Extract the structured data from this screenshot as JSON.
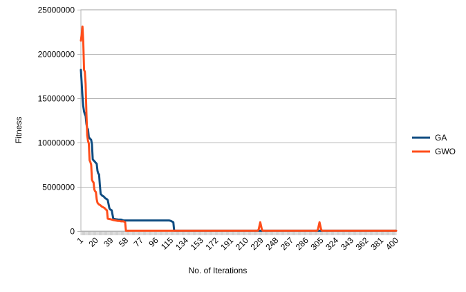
{
  "chart_data": {
    "type": "line",
    "title": "",
    "xlabel": "No. of Iterations",
    "ylabel": "Fitness",
    "xlim": [
      1,
      400
    ],
    "ylim": [
      0,
      25000000
    ],
    "y_ticks": [
      0,
      5000000,
      10000000,
      15000000,
      20000000,
      25000000
    ],
    "y_tick_labels": [
      "0",
      "5000000",
      "10000000",
      "15000000",
      "20000000",
      "25000000"
    ],
    "x_ticks": [
      1,
      20,
      39,
      58,
      77,
      96,
      115,
      134,
      153,
      172,
      191,
      210,
      229,
      248,
      267,
      286,
      305,
      324,
      343,
      362,
      381,
      400
    ],
    "x_tick_labels": [
      "1",
      "20",
      "39",
      "58",
      "77",
      "96",
      "115",
      "134",
      "153",
      "172",
      "191",
      "210",
      "229",
      "248",
      "267",
      "286",
      "305",
      "324",
      "343",
      "362",
      "381",
      "400"
    ],
    "grid": "horizontal",
    "legend_position": "right",
    "series": [
      {
        "name": "GA",
        "color": "#0f4c81",
        "x": [
          1,
          3,
          4,
          5,
          6,
          7,
          8,
          9,
          10,
          11,
          12,
          13,
          14,
          15,
          16,
          17,
          18,
          19,
          20,
          21,
          22,
          23,
          24,
          25,
          26,
          27,
          28,
          30,
          31,
          32,
          34,
          35,
          37,
          38,
          39,
          40,
          42,
          43,
          44,
          45,
          46,
          47,
          48,
          50,
          52,
          55,
          58,
          60,
          65,
          70,
          80,
          90,
          100,
          105,
          108,
          110,
          113,
          115,
          116,
          117,
          118,
          119,
          120,
          121,
          122,
          125,
          134,
          153,
          172,
          191,
          210,
          229,
          248,
          267,
          286,
          305,
          324,
          343,
          362,
          381,
          400
        ],
        "values": [
          18200000,
          15200000,
          14100000,
          13500000,
          13200000,
          13000000,
          12100000,
          11600000,
          11500000,
          10600000,
          10500000,
          10400000,
          10300000,
          9800000,
          8100000,
          8000000,
          7900000,
          7800000,
          7700000,
          7600000,
          6800000,
          6500000,
          6400000,
          5200000,
          4200000,
          4100000,
          4000000,
          3900000,
          3800000,
          3700000,
          3600000,
          3500000,
          2600000,
          2450000,
          2400000,
          2350000,
          1400000,
          1380000,
          1360000,
          1340000,
          1330000,
          1320000,
          1310000,
          1300000,
          1300000,
          1200000,
          1200000,
          1200000,
          1200000,
          1200000,
          1200000,
          1200000,
          1200000,
          1200000,
          1200000,
          1200000,
          1200000,
          1150000,
          1100000,
          1050000,
          1000000,
          50000,
          50000,
          50000,
          50000,
          50000,
          50000,
          50000,
          50000,
          50000,
          50000,
          50000,
          50000,
          50000,
          50000,
          50000,
          50000,
          50000,
          50000,
          50000,
          50000
        ]
      },
      {
        "name": "GWO",
        "color": "#ff4d1a",
        "x": [
          1,
          2,
          3,
          4,
          5,
          6,
          7,
          8,
          9,
          10,
          11,
          12,
          13,
          14,
          15,
          16,
          17,
          18,
          19,
          20,
          21,
          22,
          23,
          24,
          25,
          26,
          27,
          28,
          29,
          30,
          31,
          32,
          33,
          34,
          35,
          36,
          38,
          40,
          42,
          45,
          48,
          50,
          52,
          55,
          56,
          57,
          58,
          60,
          80,
          100,
          150,
          200,
          225,
          226,
          227,
          228,
          229,
          230,
          231,
          232,
          290,
          300,
          301,
          302,
          303,
          304,
          305,
          306,
          307,
          308,
          350,
          400
        ],
        "values": [
          21500000,
          22200000,
          23100000,
          21400000,
          18200000,
          18000000,
          16600000,
          13300000,
          10800000,
          10200000,
          9900000,
          8000000,
          7800000,
          7500000,
          5800000,
          5600000,
          5500000,
          4700000,
          4500000,
          4400000,
          3600000,
          3200000,
          3100000,
          3000000,
          2950000,
          2900000,
          2800000,
          2750000,
          2700000,
          2650000,
          2600000,
          2500000,
          2400000,
          2350000,
          1400000,
          1380000,
          1350000,
          1300000,
          1250000,
          1200000,
          1150000,
          1150000,
          1100000,
          1100000,
          1050000,
          1000000,
          50000,
          50000,
          50000,
          50000,
          50000,
          50000,
          50000,
          200000,
          600000,
          1000000,
          600000,
          200000,
          50000,
          50000,
          50000,
          50000,
          200000,
          600000,
          1000000,
          600000,
          200000,
          50000,
          50000,
          50000,
          50000,
          50000
        ]
      }
    ]
  }
}
